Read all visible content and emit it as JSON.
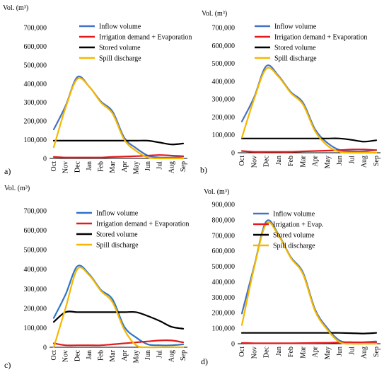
{
  "chart_data": [
    {
      "type": "line",
      "panel_label": "a)",
      "ylabel": "Vol. (m³)",
      "categories": [
        "Oct",
        "Nov",
        "Dec",
        "Jan",
        "Feb",
        "Mar",
        "Apr",
        "May",
        "Jun",
        "Jul",
        "Aug",
        "Sep"
      ],
      "ylim": [
        0,
        700000
      ],
      "yticks": [
        "0",
        "100,000",
        "200,000",
        "300,000",
        "400,000",
        "500,000",
        "600,000",
        "700,000"
      ],
      "grid": false,
      "legend_position": "top-right",
      "series": [
        {
          "name": "Inflow volume",
          "color": "#4472c4",
          "values": [
            155000,
            280000,
            435000,
            385000,
            305000,
            250000,
            110000,
            55000,
            15000,
            5000,
            5000,
            10000
          ]
        },
        {
          "name": "Irrigation demand + Evaporation",
          "color": "#e41a1c",
          "values": [
            8000,
            5000,
            5000,
            5000,
            5000,
            8000,
            10000,
            12000,
            15000,
            18000,
            15000,
            12000
          ]
        },
        {
          "name": "Stored volume",
          "color": "#000000",
          "values": [
            95000,
            95000,
            95000,
            95000,
            95000,
            95000,
            95000,
            95000,
            95000,
            85000,
            75000,
            80000
          ]
        },
        {
          "name": "Spill discharge",
          "color": "#f5b800",
          "values": [
            60000,
            270000,
            425000,
            385000,
            300000,
            240000,
            100000,
            40000,
            5000,
            0,
            0,
            0
          ]
        }
      ]
    },
    {
      "type": "line",
      "panel_label": "b)",
      "ylabel": "Vol. (m³)",
      "categories": [
        "Oct",
        "Nov",
        "Dec",
        "Jan",
        "Feb",
        "Mar",
        "Apr",
        "May",
        "Jun",
        "Jul",
        "Aug",
        "Sep"
      ],
      "ylim": [
        0,
        700000
      ],
      "yticks": [
        "0",
        "100,000",
        "200,000",
        "300,000",
        "400,000",
        "500,000",
        "600,000",
        "700,000"
      ],
      "grid": false,
      "legend_position": "top-right",
      "series": [
        {
          "name": "Inflow volume",
          "color": "#4472c4",
          "values": [
            175000,
            310000,
            485000,
            430000,
            340000,
            280000,
            130000,
            55000,
            15000,
            8000,
            8000,
            15000
          ]
        },
        {
          "name": "Irrigation demand + Evaporation",
          "color": "#e41a1c",
          "values": [
            10000,
            5000,
            5000,
            5000,
            5000,
            8000,
            10000,
            12000,
            15000,
            18000,
            18000,
            15000
          ]
        },
        {
          "name": "Stored volume",
          "color": "#000000",
          "values": [
            80000,
            80000,
            80000,
            80000,
            80000,
            80000,
            80000,
            80000,
            80000,
            72000,
            62000,
            70000
          ]
        },
        {
          "name": "Spill discharge",
          "color": "#f5b800",
          "values": [
            85000,
            300000,
            470000,
            425000,
            335000,
            270000,
            120000,
            40000,
            5000,
            0,
            0,
            0
          ]
        }
      ]
    },
    {
      "type": "line",
      "panel_label": "c)",
      "ylabel": "Vol. (m³)",
      "categories": [
        "Oct",
        "Nov",
        "Dec",
        "Jan",
        "Feb",
        "Mar",
        "Apr",
        "May",
        "Jun",
        "Jul",
        "Aug",
        "Sep"
      ],
      "ylim": [
        0,
        700000
      ],
      "yticks": [
        "0",
        "100,000",
        "200,000",
        "300,000",
        "400,000",
        "500,000",
        "600,000",
        "700,000"
      ],
      "grid": false,
      "legend_position": "top-right",
      "series": [
        {
          "name": "Inflow volume",
          "color": "#2e75c6",
          "values": [
            150000,
            270000,
            415000,
            375000,
            295000,
            245000,
            105000,
            50000,
            15000,
            10000,
            10000,
            15000
          ]
        },
        {
          "name": "Irrigation demand + Evaporation",
          "color": "#e41a1c",
          "values": [
            20000,
            10000,
            10000,
            10000,
            10000,
            15000,
            20000,
            25000,
            30000,
            35000,
            35000,
            25000
          ]
        },
        {
          "name": "Stored volume",
          "color": "#000000",
          "values": [
            130000,
            180000,
            180000,
            180000,
            180000,
            180000,
            180000,
            180000,
            160000,
            135000,
            105000,
            95000
          ]
        },
        {
          "name": "Spill discharge",
          "color": "#f5b800",
          "values": [
            0,
            200000,
            400000,
            370000,
            290000,
            230000,
            90000,
            10000,
            0,
            0,
            0,
            0
          ]
        }
      ]
    },
    {
      "type": "line",
      "panel_label": "d)",
      "ylabel": "Vol. (m³)",
      "categories": [
        "Oct",
        "Nov",
        "Dec",
        "Jan",
        "Feb",
        "Mar",
        "Apr",
        "May",
        "Jun",
        "Jul",
        "Aug",
        "Sep"
      ],
      "ylim": [
        0,
        900000
      ],
      "yticks": [
        "0",
        "100,000",
        "200,000",
        "300,000",
        "400,000",
        "500,000",
        "600,000",
        "700,000",
        "800,000",
        "900,000"
      ],
      "grid": false,
      "legend_position": "top-right",
      "series": [
        {
          "name": "Inflow volume",
          "color": "#4472c4",
          "values": [
            195000,
            500000,
            790000,
            705000,
            560000,
            460000,
            220000,
            100000,
            20000,
            10000,
            10000,
            15000
          ]
        },
        {
          "name": "Irrigation + Evap.",
          "color": "#e41a1c",
          "values": [
            5000,
            3000,
            3000,
            3000,
            3000,
            4000,
            5000,
            6000,
            8000,
            8000,
            8000,
            6000
          ]
        },
        {
          "name": "Stored volume",
          "color": "#000000",
          "values": [
            70000,
            70000,
            70000,
            70000,
            70000,
            70000,
            70000,
            70000,
            70000,
            68000,
            66000,
            70000
          ]
        },
        {
          "name": "Spill discharge",
          "color": "#f5b800",
          "values": [
            120000,
            490000,
            775000,
            700000,
            555000,
            450000,
            210000,
            90000,
            10000,
            0,
            0,
            0
          ]
        }
      ]
    }
  ]
}
